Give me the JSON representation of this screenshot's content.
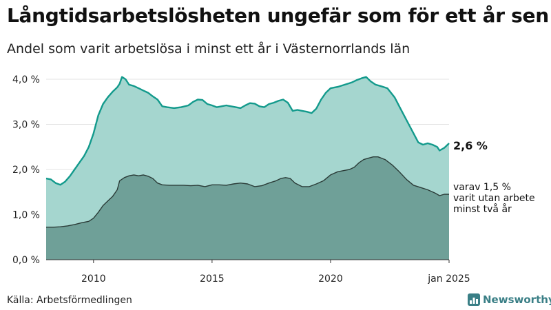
{
  "title": "Långtidsarbetslösheten ungefär som för ett år sen",
  "subtitle": "Andel som varit arbetslösa i minst ett år i Västernorrlands län",
  "source": "Källa: Arbetsförmedlingen",
  "brand": "Newsworthy",
  "callouts": {
    "total_value": "2,6 %",
    "sub_line1": "varav 1,5 %",
    "sub_line2": "varit utan arbete",
    "sub_line3": "minst två år"
  },
  "colors": {
    "total_fill": "#a5d6cf",
    "total_line": "#139a8c",
    "sub_fill": "#6fa098",
    "sub_line": "#2b3c38",
    "grid": "#e3e3e3"
  },
  "chart_data": {
    "type": "area",
    "xlim": [
      2008.0,
      2025.0
    ],
    "ylim": [
      0,
      4.0
    ],
    "y_ticks": [
      0,
      1,
      2,
      3,
      4
    ],
    "y_tick_labels": [
      "0,0 %",
      "1,0 %",
      "2,0 %",
      "3,0 %",
      "4,0 %"
    ],
    "x_ticks": [
      2010,
      2015,
      2020,
      2025
    ],
    "x_tick_labels": [
      "2010",
      "2015",
      "2020",
      "jan 2025"
    ],
    "grid": true,
    "series": [
      {
        "values": [
          [
            2008.0,
            1.8
          ],
          [
            2008.2,
            1.78
          ],
          [
            2008.4,
            1.7
          ],
          [
            2008.6,
            1.66
          ],
          [
            2008.8,
            1.73
          ],
          [
            2009.0,
            1.85
          ],
          [
            2009.2,
            2.0
          ],
          [
            2009.4,
            2.15
          ],
          [
            2009.6,
            2.3
          ],
          [
            2009.8,
            2.5
          ],
          [
            2010.0,
            2.8
          ],
          [
            2010.2,
            3.2
          ],
          [
            2010.4,
            3.45
          ],
          [
            2010.6,
            3.6
          ],
          [
            2010.8,
            3.72
          ],
          [
            2011.0,
            3.82
          ],
          [
            2011.1,
            3.9
          ],
          [
            2011.2,
            4.05
          ],
          [
            2011.35,
            4.0
          ],
          [
            2011.5,
            3.88
          ],
          [
            2011.7,
            3.85
          ],
          [
            2011.9,
            3.8
          ],
          [
            2012.1,
            3.75
          ],
          [
            2012.3,
            3.7
          ],
          [
            2012.5,
            3.62
          ],
          [
            2012.7,
            3.55
          ],
          [
            2012.9,
            3.4
          ],
          [
            2013.1,
            3.38
          ],
          [
            2013.4,
            3.36
          ],
          [
            2013.7,
            3.38
          ],
          [
            2014.0,
            3.42
          ],
          [
            2014.2,
            3.5
          ],
          [
            2014.4,
            3.55
          ],
          [
            2014.6,
            3.54
          ],
          [
            2014.8,
            3.45
          ],
          [
            2015.0,
            3.42
          ],
          [
            2015.2,
            3.38
          ],
          [
            2015.4,
            3.4
          ],
          [
            2015.6,
            3.42
          ],
          [
            2015.8,
            3.4
          ],
          [
            2016.0,
            3.38
          ],
          [
            2016.2,
            3.36
          ],
          [
            2016.4,
            3.42
          ],
          [
            2016.6,
            3.47
          ],
          [
            2016.8,
            3.46
          ],
          [
            2017.0,
            3.4
          ],
          [
            2017.2,
            3.38
          ],
          [
            2017.4,
            3.45
          ],
          [
            2017.6,
            3.48
          ],
          [
            2017.8,
            3.52
          ],
          [
            2018.0,
            3.55
          ],
          [
            2018.2,
            3.48
          ],
          [
            2018.4,
            3.3
          ],
          [
            2018.6,
            3.32
          ],
          [
            2018.8,
            3.3
          ],
          [
            2019.0,
            3.28
          ],
          [
            2019.2,
            3.25
          ],
          [
            2019.4,
            3.35
          ],
          [
            2019.6,
            3.55
          ],
          [
            2019.8,
            3.7
          ],
          [
            2020.0,
            3.8
          ],
          [
            2020.3,
            3.83
          ],
          [
            2020.6,
            3.88
          ],
          [
            2020.9,
            3.93
          ],
          [
            2021.1,
            3.98
          ],
          [
            2021.3,
            4.02
          ],
          [
            2021.5,
            4.05
          ],
          [
            2021.7,
            3.95
          ],
          [
            2021.9,
            3.88
          ],
          [
            2022.1,
            3.85
          ],
          [
            2022.4,
            3.8
          ],
          [
            2022.7,
            3.6
          ],
          [
            2022.9,
            3.4
          ],
          [
            2023.1,
            3.2
          ],
          [
            2023.3,
            3.0
          ],
          [
            2023.5,
            2.8
          ],
          [
            2023.7,
            2.6
          ],
          [
            2023.9,
            2.55
          ],
          [
            2024.1,
            2.58
          ],
          [
            2024.3,
            2.55
          ],
          [
            2024.5,
            2.5
          ],
          [
            2024.6,
            2.42
          ],
          [
            2024.8,
            2.48
          ],
          [
            2025.0,
            2.58
          ]
        ]
      },
      {
        "values": [
          [
            2008.0,
            0.72
          ],
          [
            2008.3,
            0.72
          ],
          [
            2008.6,
            0.73
          ],
          [
            2008.9,
            0.75
          ],
          [
            2009.2,
            0.78
          ],
          [
            2009.5,
            0.82
          ],
          [
            2009.8,
            0.85
          ],
          [
            2010.0,
            0.92
          ],
          [
            2010.2,
            1.05
          ],
          [
            2010.4,
            1.2
          ],
          [
            2010.6,
            1.3
          ],
          [
            2010.8,
            1.4
          ],
          [
            2011.0,
            1.55
          ],
          [
            2011.1,
            1.75
          ],
          [
            2011.3,
            1.82
          ],
          [
            2011.5,
            1.86
          ],
          [
            2011.7,
            1.88
          ],
          [
            2011.9,
            1.86
          ],
          [
            2012.1,
            1.88
          ],
          [
            2012.3,
            1.85
          ],
          [
            2012.5,
            1.8
          ],
          [
            2012.7,
            1.7
          ],
          [
            2012.9,
            1.66
          ],
          [
            2013.2,
            1.65
          ],
          [
            2013.5,
            1.65
          ],
          [
            2013.8,
            1.65
          ],
          [
            2014.1,
            1.64
          ],
          [
            2014.4,
            1.65
          ],
          [
            2014.7,
            1.62
          ],
          [
            2015.0,
            1.66
          ],
          [
            2015.3,
            1.66
          ],
          [
            2015.6,
            1.65
          ],
          [
            2015.9,
            1.68
          ],
          [
            2016.2,
            1.7
          ],
          [
            2016.5,
            1.68
          ],
          [
            2016.8,
            1.62
          ],
          [
            2017.1,
            1.64
          ],
          [
            2017.4,
            1.7
          ],
          [
            2017.7,
            1.75
          ],
          [
            2017.9,
            1.8
          ],
          [
            2018.1,
            1.82
          ],
          [
            2018.3,
            1.8
          ],
          [
            2018.5,
            1.7
          ],
          [
            2018.8,
            1.62
          ],
          [
            2019.1,
            1.62
          ],
          [
            2019.4,
            1.68
          ],
          [
            2019.7,
            1.75
          ],
          [
            2020.0,
            1.88
          ],
          [
            2020.3,
            1.95
          ],
          [
            2020.6,
            1.98
          ],
          [
            2020.8,
            2.0
          ],
          [
            2021.0,
            2.05
          ],
          [
            2021.2,
            2.15
          ],
          [
            2021.4,
            2.22
          ],
          [
            2021.6,
            2.25
          ],
          [
            2021.8,
            2.28
          ],
          [
            2022.0,
            2.28
          ],
          [
            2022.3,
            2.22
          ],
          [
            2022.6,
            2.1
          ],
          [
            2022.9,
            1.95
          ],
          [
            2023.2,
            1.78
          ],
          [
            2023.5,
            1.65
          ],
          [
            2023.8,
            1.6
          ],
          [
            2024.1,
            1.55
          ],
          [
            2024.4,
            1.48
          ],
          [
            2024.6,
            1.42
          ],
          [
            2024.8,
            1.45
          ],
          [
            2025.0,
            1.45
          ]
        ]
      }
    ]
  }
}
